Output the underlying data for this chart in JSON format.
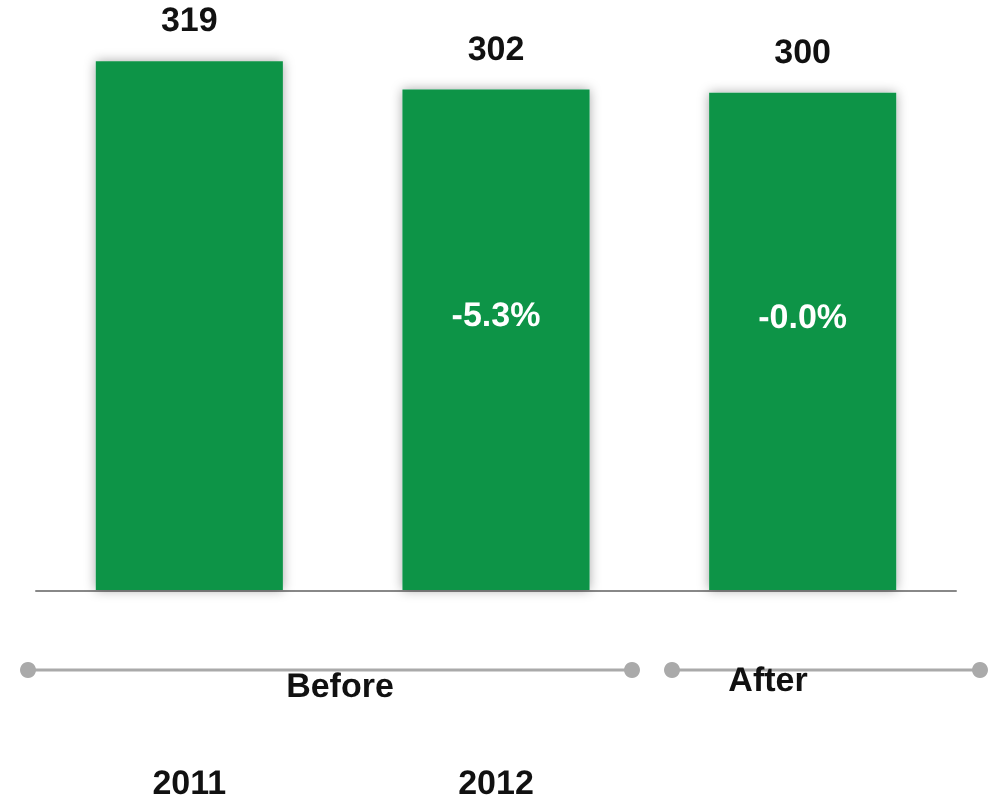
{
  "chart_data": {
    "type": "bar",
    "categories": [
      "2011",
      "2012",
      null
    ],
    "values": [
      319,
      302,
      300
    ],
    "color": "#0b9447",
    "tick_labels": "x",
    "data_labels": true,
    "annotations": [
      "-5.3%",
      "-0.0%",
      "Before",
      "After"
    ]
  }
}
